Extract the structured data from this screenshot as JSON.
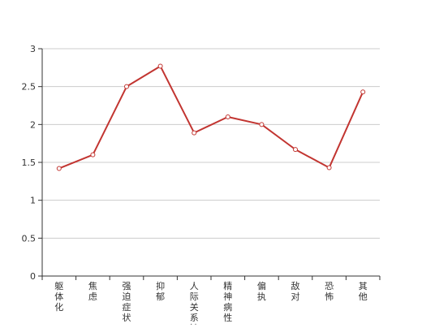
{
  "chart_data": {
    "type": "line",
    "categories": [
      "躯体化",
      "焦虑",
      "强迫症状",
      "抑郁",
      "人际关系敏感",
      "精神病性",
      "偏执",
      "敌对",
      "恐怖",
      "其他"
    ],
    "series": [
      {
        "values": [
          1.42,
          1.6,
          2.5,
          2.77,
          1.89,
          2.1,
          2.0,
          1.67,
          1.43,
          2.43
        ]
      }
    ],
    "y_ticks": [
      "0",
      "0.5",
      "1",
      "1.5",
      "2",
      "2.5",
      "3"
    ],
    "ylim": [
      0,
      3
    ],
    "grid": true,
    "colors": {
      "line": "#c23531",
      "grid": "#cccccc",
      "axis": "#333333",
      "label": "#333333"
    }
  }
}
